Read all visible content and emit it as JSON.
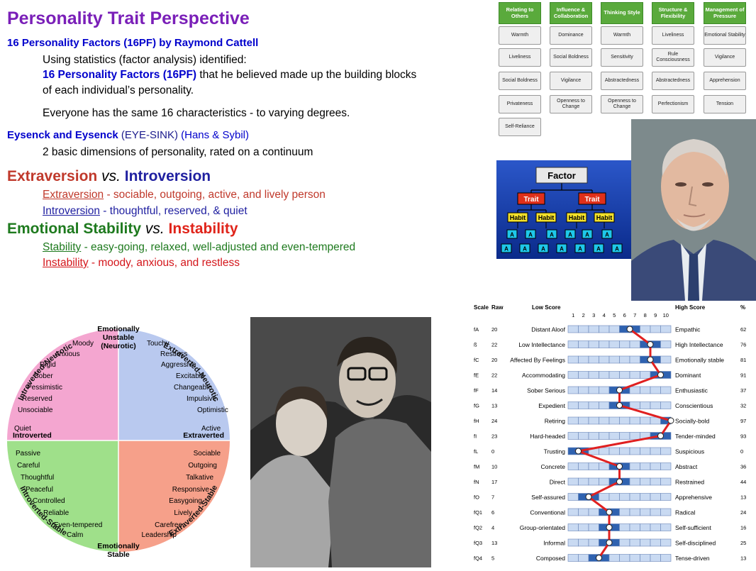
{
  "heading": {
    "title": "Personality Trait Perspective",
    "l1": "16 Personality Factors (16PF) by Raymond Cattell",
    "l2": "Using statistics (factor analysis) identified:",
    "l3a": "16 Personality Factors (16PF)",
    "l3b": " that he believed made up the building blocks",
    "l4": "of each individual’s personality.",
    "l5": "Everyone has the same 16 characteristics - to varying degrees.",
    "l6a": "Eysenck and Eysenck",
    "l6b": " (EYE-SINK)  ",
    "l6c": "(Hans & Sybil)",
    "l7": "2 basic dimensions of personality, rated on a continuum",
    "ext_a": "Extraversion",
    "ext_vs": " vs. ",
    "ext_b": "Introversion",
    "ext1a": "Extraversion",
    "ext1b": " - sociable, outgoing, active, and lively person",
    "ext2a": "Introversion",
    "ext2b": " - thoughtful, reserved, & quiet",
    "emo_a": "Emotional Stability",
    "emo_vs": " vs. ",
    "emo_b": "Instability",
    "emo1a": "Stability",
    "emo1b": " - easy-going, relaxed, well-adjusted and even-tempered",
    "emo2a": "Instability",
    "emo2b": " - moody, anxious, and restless"
  },
  "pf_grid": {
    "headers": [
      "Relating to Others",
      "Influence & Collaboration",
      "Thinking Style",
      "Structure & Flexibility",
      "Management of Pressure"
    ],
    "rows": [
      [
        "Warmth",
        "Dominance",
        "Warmth",
        "Liveliness",
        "Emotional Stability"
      ],
      [
        "Liveliness",
        "Social Boldness",
        "Sensitivity",
        "Rule Consciousness",
        "Vigilance"
      ],
      [
        "Social Boldness",
        "Vigilance",
        "Abstractedness",
        "Abstractedness",
        "Apprehension"
      ],
      [
        "Privateness",
        "Openness to Change",
        "Openness to Change",
        "Perfectionism",
        "Tension"
      ],
      [
        "Self-Reliance",
        "",
        "",
        "",
        ""
      ]
    ]
  },
  "factor_diagram": {
    "factor": "Factor",
    "trait": "Trait",
    "habit": "Habit",
    "a": "A"
  },
  "circle": {
    "top": "Emotionally\nUnstable\n(Neurotic)",
    "bottom": "Emotionally\nStable",
    "left_mid": "Introverted",
    "right_mid": "Extraverted",
    "arc_tl": "Introverted-Neurotic",
    "arc_tr": "Extraverted-Neurotic",
    "arc_bl": "Introverted-Stable",
    "arc_br": "Extraverted-Stable",
    "q_tl": [
      "Moody",
      "Anxious",
      "Rigid",
      "Sober",
      "Pessimistic",
      "Reserved",
      "Unsociable",
      "Quiet"
    ],
    "q_tr": [
      "Touchy",
      "Restless",
      "Aggressive",
      "Excitable",
      "Changeable",
      "Impulsive",
      "Optimistic",
      "Active"
    ],
    "q_bl": [
      "Passive",
      "Careful",
      "Thoughtful",
      "Peaceful",
      "Controlled",
      "Reliable",
      "Even-tempered",
      "Calm"
    ],
    "q_br": [
      "Sociable",
      "Outgoing",
      "Talkative",
      "Responsive",
      "Easygoing",
      "Lively",
      "Carefree",
      "Leadership"
    ],
    "colors": {
      "tl": "#f4a6d0",
      "tr": "#b9c9ef",
      "bl": "#9fe08a",
      "br": "#f6a08a"
    }
  },
  "profile": {
    "h_scale": "Scale",
    "h_raw": "Raw",
    "h_low": "Low Score",
    "h_high": "High Score",
    "h_pct": "%",
    "stens": [
      "1",
      "2",
      "3",
      "4",
      "5",
      "6",
      "7",
      "8",
      "9",
      "10"
    ],
    "rows": [
      {
        "scale": "fA",
        "raw": "20",
        "low": "Distant Aloof",
        "high": "Empathic",
        "pct": "62",
        "sten": 6
      },
      {
        "scale": "ß",
        "raw": "22",
        "low": "Low Intellectance",
        "high": "High Intellectance",
        "pct": "76",
        "sten": 8
      },
      {
        "scale": "fC",
        "raw": "20",
        "low": "Affected By Feelings",
        "high": "Emotionally stable",
        "pct": "81",
        "sten": 8
      },
      {
        "scale": "fE",
        "raw": "22",
        "low": "Accommodating",
        "high": "Dominant",
        "pct": "91",
        "sten": 9
      },
      {
        "scale": "fF",
        "raw": "14",
        "low": "Sober Serious",
        "high": "Enthusiastic",
        "pct": "37",
        "sten": 5
      },
      {
        "scale": "fG",
        "raw": "13",
        "low": "Expedient",
        "high": "Conscientious",
        "pct": "32",
        "sten": 5
      },
      {
        "scale": "fH",
        "raw": "24",
        "low": "Retiring",
        "high": "Socially-bold",
        "pct": "97",
        "sten": 10
      },
      {
        "scale": "fI",
        "raw": "23",
        "low": "Hard-headed",
        "high": "Tender-minded",
        "pct": "93",
        "sten": 9
      },
      {
        "scale": "fL",
        "raw": "0",
        "low": "Trusting",
        "high": "Suspicious",
        "pct": "0",
        "sten": 1
      },
      {
        "scale": "fM",
        "raw": "10",
        "low": "Concrete",
        "high": "Abstract",
        "pct": "36",
        "sten": 5
      },
      {
        "scale": "fN",
        "raw": "17",
        "low": "Direct",
        "high": "Restrained",
        "pct": "44",
        "sten": 5
      },
      {
        "scale": "fO",
        "raw": "7",
        "low": "Self-assured",
        "high": "Apprehensive",
        "pct": "13",
        "sten": 2
      },
      {
        "scale": "fQ1",
        "raw": "6",
        "low": "Conventional",
        "high": "Radical",
        "pct": "24",
        "sten": 4
      },
      {
        "scale": "fQ2",
        "raw": "4",
        "low": "Group-orientated",
        "high": "Self-sufficient",
        "pct": "16",
        "sten": 4
      },
      {
        "scale": "fQ3",
        "raw": "13",
        "low": "Informal",
        "high": "Self-disciplined",
        "pct": "25",
        "sten": 4
      },
      {
        "scale": "fQ4",
        "raw": "5",
        "low": "Composed",
        "high": "Tense-driven",
        "pct": "13",
        "sten": 3
      }
    ]
  }
}
